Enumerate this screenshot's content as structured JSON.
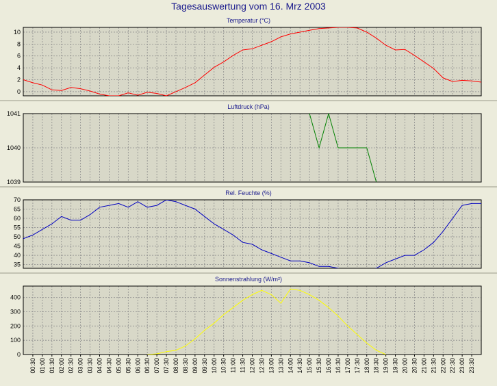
{
  "title": "Tagesauswertung vom 16. Mrz 2003",
  "time_labels": [
    "00:30",
    "01:00",
    "01:30",
    "02:00",
    "02:30",
    "03:00",
    "03:30",
    "04:00",
    "04:30",
    "05:00",
    "05:30",
    "06:00",
    "06:30",
    "07:00",
    "07:30",
    "08:00",
    "08:30",
    "09:00",
    "09:30",
    "10:00",
    "10:30",
    "11:00",
    "11:30",
    "12:00",
    "12:30",
    "13:00",
    "13:30",
    "14:00",
    "14:30",
    "15:00",
    "15:30",
    "16:00",
    "16:30",
    "17:00",
    "17:30",
    "18:00",
    "18:30",
    "19:00",
    "19:30",
    "20:00",
    "20:30",
    "21:00",
    "21:30",
    "22:00",
    "22:30",
    "23:00",
    "23:30"
  ],
  "colors": {
    "background": "#ececdc",
    "plot_bg": "#d8d8c8",
    "grid": "#8c8c8c",
    "title": "#1a1a8c"
  },
  "chart_data": [
    {
      "type": "line",
      "title": "Temperatur (°C)",
      "color": "#ff0000",
      "ylim": [
        -0.7,
        10.8
      ],
      "yticks": [
        0,
        2,
        4,
        6,
        8,
        10
      ],
      "x": [
        "00:00",
        "00:30",
        "01:00",
        "01:30",
        "02:00",
        "02:30",
        "03:00",
        "03:30",
        "04:00",
        "04:30",
        "05:00",
        "05:30",
        "06:00",
        "06:30",
        "07:00",
        "07:30",
        "08:00",
        "08:30",
        "09:00",
        "09:30",
        "10:00",
        "10:30",
        "11:00",
        "11:30",
        "12:00",
        "12:30",
        "13:00",
        "13:30",
        "14:00",
        "14:30",
        "15:00",
        "15:30",
        "16:00",
        "16:30",
        "17:00",
        "17:30",
        "18:00",
        "18:30",
        "19:00",
        "19:30",
        "20:00",
        "20:30",
        "21:00",
        "21:30",
        "22:00",
        "22:30",
        "23:00",
        "23:30",
        "24:00"
      ],
      "values": [
        2.0,
        1.5,
        1.1,
        0.3,
        0.2,
        0.7,
        0.5,
        0.1,
        -0.4,
        -0.7,
        -0.7,
        -0.2,
        -0.6,
        -0.1,
        -0.3,
        -0.7,
        0.0,
        0.7,
        1.5,
        2.8,
        4.1,
        5.0,
        6.1,
        7.0,
        7.2,
        7.8,
        8.4,
        9.2,
        9.7,
        10.0,
        10.3,
        10.6,
        10.7,
        10.8,
        10.8,
        10.7,
        10.0,
        9.0,
        7.8,
        7.0,
        7.1,
        6.1,
        5.0,
        3.9,
        2.3,
        1.7,
        1.9,
        1.8,
        1.6
      ]
    },
    {
      "type": "line",
      "title": "Luftdruck (hPa)",
      "color": "#008000",
      "ylim": [
        1039,
        1041
      ],
      "yticks": [
        1039,
        1040,
        1041
      ],
      "x": [
        "15:00",
        "15:30",
        "16:00",
        "16:30",
        "17:00",
        "17:30",
        "18:00",
        "18:30"
      ],
      "values": [
        1041.0,
        1040.0,
        1041.0,
        1040.0,
        1040.0,
        1040.0,
        1040.0,
        1039.0
      ]
    },
    {
      "type": "line",
      "title": "Rel. Feuchte (%)",
      "color": "#0000c0",
      "ylim": [
        33,
        70
      ],
      "yticks": [
        35,
        40,
        45,
        50,
        55,
        60,
        65,
        70
      ],
      "x": [
        "00:00",
        "00:30",
        "01:00",
        "01:30",
        "02:00",
        "02:30",
        "03:00",
        "03:30",
        "04:00",
        "04:30",
        "05:00",
        "05:30",
        "06:00",
        "06:30",
        "07:00",
        "07:30",
        "08:00",
        "08:30",
        "09:00",
        "09:30",
        "10:00",
        "10:30",
        "11:00",
        "11:30",
        "12:00",
        "12:30",
        "13:00",
        "13:30",
        "14:00",
        "14:30",
        "15:00",
        "15:30",
        "16:00",
        "16:30",
        "17:00",
        "17:30",
        "18:00",
        "18:30",
        "19:00",
        "19:30",
        "20:00",
        "20:30",
        "21:00",
        "21:30",
        "22:00",
        "22:30",
        "23:00",
        "23:30",
        "24:00"
      ],
      "values": [
        49,
        51,
        54,
        57,
        61,
        59,
        59,
        62,
        66,
        67,
        68,
        66,
        69,
        66,
        67,
        70,
        69,
        67,
        65,
        61,
        57,
        54,
        51,
        47,
        46,
        43,
        41,
        39,
        37,
        37,
        36,
        34,
        34,
        33,
        32,
        32,
        32,
        33,
        36,
        38,
        40,
        40,
        43,
        47,
        53,
        60,
        67,
        68,
        68
      ]
    },
    {
      "type": "line",
      "title": "Sonnenstrahlung (W/m²)",
      "color": "#ffff00",
      "ylim": [
        0,
        480
      ],
      "yticks": [
        0,
        100,
        200,
        300,
        400
      ],
      "x": [
        "06:30",
        "07:00",
        "07:30",
        "08:00",
        "08:30",
        "09:00",
        "09:30",
        "10:00",
        "10:30",
        "11:00",
        "11:30",
        "12:00",
        "12:30",
        "13:00",
        "13:30",
        "14:00",
        "14:30",
        "15:00",
        "15:30",
        "16:00",
        "16:30",
        "17:00",
        "17:30",
        "18:00",
        "18:30",
        "19:00"
      ],
      "values": [
        0,
        5,
        20,
        30,
        60,
        110,
        170,
        220,
        280,
        330,
        380,
        420,
        450,
        420,
        360,
        460,
        450,
        420,
        380,
        330,
        270,
        200,
        140,
        80,
        30,
        0
      ]
    }
  ]
}
